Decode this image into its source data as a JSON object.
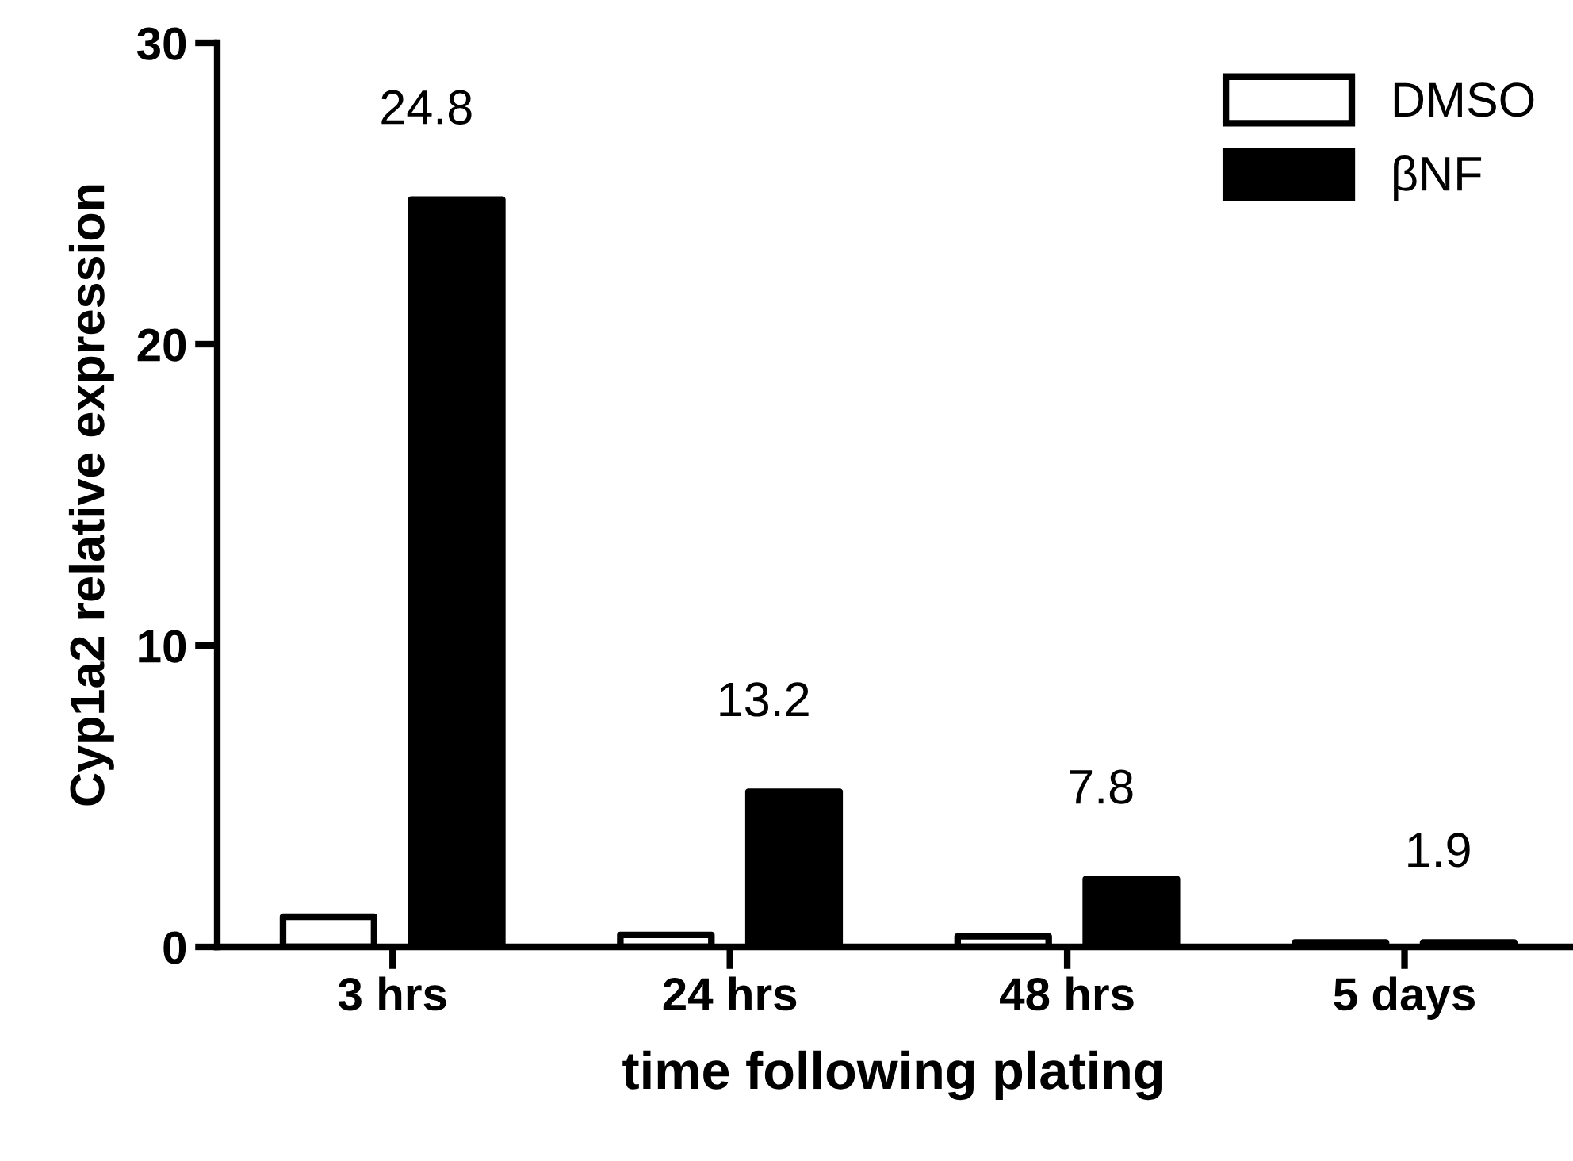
{
  "chart_data": {
    "type": "bar",
    "xlabel": "time following plating",
    "ylabel": "Cyp1a2 relative expression",
    "categories": [
      "3 hrs",
      "24 hrs",
      "48 hrs",
      "5 days"
    ],
    "series": [
      {
        "name": "DMSO",
        "color": "#ffffff",
        "values": [
          1.0,
          0.4,
          0.35,
          0.15
        ]
      },
      {
        "name": "βNF",
        "color": "#000000",
        "values": [
          24.8,
          5.15,
          2.25,
          0.15
        ]
      }
    ],
    "ylim": [
      0,
      30
    ],
    "yticks": [
      0,
      10,
      20,
      30
    ],
    "legend": "top right",
    "grid": false,
    "annotations": [
      "24.8",
      "13.2",
      "7.8",
      "1.9"
    ]
  }
}
